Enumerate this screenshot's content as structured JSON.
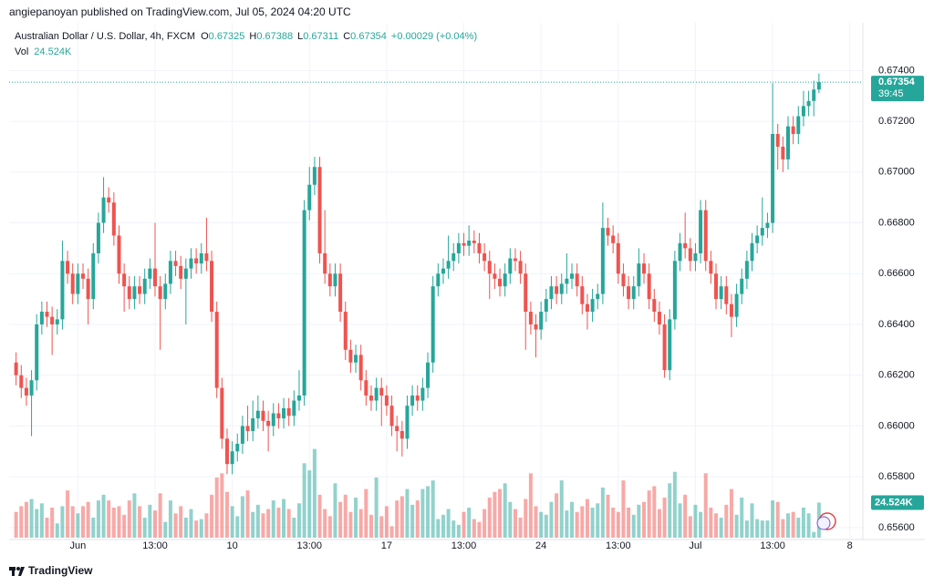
{
  "chart_data": {
    "type": "candlestick",
    "author_line": "angiepanoyan published on TradingView.com, Jul 05, 2024 04:20 UTC",
    "legend": {
      "symbol": "Australian Dollar / U.S. Dollar, 4h, FXCM",
      "o_label": "O",
      "open": 0.67325,
      "h_label": "H",
      "high": 0.67388,
      "l_label": "L",
      "low": 0.67311,
      "c_label": "C",
      "close": 0.67354,
      "change": "+0.00029 (+0.04%)",
      "vol_label": "Vol",
      "vol_value": "24.524K"
    },
    "countdown": "39:45",
    "footer": "TradingView",
    "up_color": "#26a69a",
    "down_color": "#ef5350",
    "grid": true,
    "xlim": [
      -1,
      164
    ],
    "xticks": [
      {
        "value": 12,
        "label": "Jun"
      },
      {
        "value": 27,
        "label": "13:00"
      },
      {
        "value": 42,
        "label": "10"
      },
      {
        "value": 57,
        "label": "13:00"
      },
      {
        "value": 72,
        "label": "17"
      },
      {
        "value": 87,
        "label": "13:00"
      },
      {
        "value": 102,
        "label": "24"
      },
      {
        "value": 117,
        "label": "13:00"
      },
      {
        "value": 132,
        "label": "Jul"
      },
      {
        "value": 147,
        "label": "13:00"
      },
      {
        "value": 162,
        "label": "8"
      }
    ],
    "ylim": [
      0.6556,
      0.6757
    ],
    "yticks": [
      {
        "value": 0.656,
        "label": "0.65600"
      },
      {
        "value": 0.658,
        "label": "0.65800"
      },
      {
        "value": 0.66,
        "label": "0.66000"
      },
      {
        "value": 0.662,
        "label": "0.66200"
      },
      {
        "value": 0.664,
        "label": "0.66400"
      },
      {
        "value": 0.666,
        "label": "0.66600"
      },
      {
        "value": 0.668,
        "label": "0.66800"
      },
      {
        "value": 0.67,
        "label": "0.67000"
      },
      {
        "value": 0.672,
        "label": "0.67200"
      },
      {
        "value": 0.674,
        "label": "0.67400"
      }
    ],
    "vlim": [
      0,
      70
    ],
    "ohlc": [
      [
        0.6625,
        0.6629,
        0.6616,
        0.662
      ],
      [
        0.662,
        0.6624,
        0.6611,
        0.6615
      ],
      [
        0.6615,
        0.6619,
        0.6608,
        0.6612
      ],
      [
        0.6612,
        0.6622,
        0.6596,
        0.6618
      ],
      [
        0.6618,
        0.6644,
        0.6614,
        0.664
      ],
      [
        0.664,
        0.6649,
        0.6636,
        0.6645
      ],
      [
        0.6645,
        0.6649,
        0.6639,
        0.6643
      ],
      [
        0.6643,
        0.6647,
        0.6628,
        0.664
      ],
      [
        0.664,
        0.6646,
        0.6636,
        0.6642
      ],
      [
        0.6642,
        0.6673,
        0.6638,
        0.6665
      ],
      [
        0.6665,
        0.6669,
        0.6656,
        0.666
      ],
      [
        0.666,
        0.6664,
        0.6648,
        0.6652
      ],
      [
        0.6652,
        0.6664,
        0.6648,
        0.666
      ],
      [
        0.666,
        0.6664,
        0.6654,
        0.6658
      ],
      [
        0.6658,
        0.6662,
        0.664,
        0.665
      ],
      [
        0.665,
        0.6672,
        0.6646,
        0.6668
      ],
      [
        0.6668,
        0.6684,
        0.6664,
        0.668
      ],
      [
        0.668,
        0.6698,
        0.6676,
        0.669
      ],
      [
        0.669,
        0.6694,
        0.6684,
        0.6688
      ],
      [
        0.6688,
        0.6692,
        0.6671,
        0.6675
      ],
      [
        0.6675,
        0.6679,
        0.6656,
        0.666
      ],
      [
        0.666,
        0.6664,
        0.6645,
        0.6655
      ],
      [
        0.6655,
        0.6659,
        0.6646,
        0.665
      ],
      [
        0.665,
        0.6659,
        0.6646,
        0.6655
      ],
      [
        0.6655,
        0.6659,
        0.6648,
        0.6652
      ],
      [
        0.6652,
        0.6662,
        0.6648,
        0.6658
      ],
      [
        0.6658,
        0.6666,
        0.6654,
        0.6662
      ],
      [
        0.6662,
        0.668,
        0.6651,
        0.6655
      ],
      [
        0.6655,
        0.6659,
        0.663,
        0.665
      ],
      [
        0.665,
        0.666,
        0.6646,
        0.6656
      ],
      [
        0.6656,
        0.6669,
        0.6652,
        0.6665
      ],
      [
        0.6665,
        0.6669,
        0.6659,
        0.6663
      ],
      [
        0.6663,
        0.6667,
        0.6654,
        0.6658
      ],
      [
        0.6658,
        0.6666,
        0.664,
        0.6662
      ],
      [
        0.6662,
        0.667,
        0.6658,
        0.6666
      ],
      [
        0.6666,
        0.667,
        0.666,
        0.6664
      ],
      [
        0.6664,
        0.6672,
        0.666,
        0.6668
      ],
      [
        0.6668,
        0.6682,
        0.6661,
        0.6665
      ],
      [
        0.6665,
        0.6669,
        0.6641,
        0.6645
      ],
      [
        0.6645,
        0.6649,
        0.6611,
        0.6615
      ],
      [
        0.6615,
        0.6619,
        0.6591,
        0.6595
      ],
      [
        0.6595,
        0.6599,
        0.6581,
        0.6585
      ],
      [
        0.6585,
        0.6594,
        0.6581,
        0.659
      ],
      [
        0.659,
        0.6597,
        0.6586,
        0.6593
      ],
      [
        0.6593,
        0.6604,
        0.6589,
        0.66
      ],
      [
        0.66,
        0.6608,
        0.6594,
        0.6598
      ],
      [
        0.6598,
        0.661,
        0.6594,
        0.6603
      ],
      [
        0.6603,
        0.6612,
        0.6599,
        0.6606
      ],
      [
        0.6606,
        0.661,
        0.6598,
        0.6602
      ],
      [
        0.6602,
        0.6606,
        0.659,
        0.66
      ],
      [
        0.66,
        0.6609,
        0.6596,
        0.6605
      ],
      [
        0.6605,
        0.6609,
        0.6599,
        0.6603
      ],
      [
        0.6603,
        0.6611,
        0.6599,
        0.6607
      ],
      [
        0.6607,
        0.6611,
        0.66,
        0.6604
      ],
      [
        0.6604,
        0.6614,
        0.66,
        0.661
      ],
      [
        0.661,
        0.6622,
        0.6606,
        0.6612
      ],
      [
        0.6612,
        0.6689,
        0.6608,
        0.6685
      ],
      [
        0.6685,
        0.6702,
        0.6681,
        0.6695
      ],
      [
        0.6695,
        0.6706,
        0.6691,
        0.6702
      ],
      [
        0.6702,
        0.6706,
        0.6664,
        0.6668
      ],
      [
        0.6668,
        0.6685,
        0.6656,
        0.666
      ],
      [
        0.666,
        0.6664,
        0.6651,
        0.6655
      ],
      [
        0.6655,
        0.6664,
        0.6651,
        0.666
      ],
      [
        0.666,
        0.6664,
        0.6641,
        0.6645
      ],
      [
        0.6645,
        0.6649,
        0.6626,
        0.663
      ],
      [
        0.663,
        0.6634,
        0.6621,
        0.6625
      ],
      [
        0.6625,
        0.6632,
        0.6621,
        0.6628
      ],
      [
        0.6628,
        0.6632,
        0.6614,
        0.6618
      ],
      [
        0.6618,
        0.6622,
        0.6608,
        0.6612
      ],
      [
        0.6612,
        0.6616,
        0.6606,
        0.661
      ],
      [
        0.661,
        0.6619,
        0.6606,
        0.6615
      ],
      [
        0.6615,
        0.6619,
        0.66,
        0.6612
      ],
      [
        0.6612,
        0.6616,
        0.6604,
        0.6608
      ],
      [
        0.6608,
        0.6612,
        0.6596,
        0.66
      ],
      [
        0.66,
        0.6604,
        0.659,
        0.6598
      ],
      [
        0.6598,
        0.6602,
        0.6588,
        0.6595
      ],
      [
        0.6595,
        0.6612,
        0.6591,
        0.6608
      ],
      [
        0.6608,
        0.6616,
        0.6604,
        0.6612
      ],
      [
        0.6612,
        0.6616,
        0.6606,
        0.661
      ],
      [
        0.661,
        0.6619,
        0.6606,
        0.6615
      ],
      [
        0.6615,
        0.6629,
        0.6611,
        0.6625
      ],
      [
        0.6625,
        0.6659,
        0.6621,
        0.6655
      ],
      [
        0.6655,
        0.6664,
        0.6651,
        0.666
      ],
      [
        0.666,
        0.6666,
        0.6656,
        0.6662
      ],
      [
        0.6662,
        0.6675,
        0.6658,
        0.6665
      ],
      [
        0.6665,
        0.6672,
        0.6661,
        0.6668
      ],
      [
        0.6668,
        0.6676,
        0.6664,
        0.6672
      ],
      [
        0.6672,
        0.6676,
        0.6667,
        0.6671
      ],
      [
        0.6671,
        0.6679,
        0.6667,
        0.6673
      ],
      [
        0.6673,
        0.6677,
        0.6668,
        0.6672
      ],
      [
        0.6672,
        0.6676,
        0.6664,
        0.6668
      ],
      [
        0.6668,
        0.6672,
        0.6661,
        0.6665
      ],
      [
        0.6665,
        0.6669,
        0.665,
        0.666
      ],
      [
        0.666,
        0.6664,
        0.6654,
        0.6658
      ],
      [
        0.6658,
        0.6662,
        0.6651,
        0.6655
      ],
      [
        0.6655,
        0.6664,
        0.6651,
        0.666
      ],
      [
        0.666,
        0.667,
        0.6656,
        0.6666
      ],
      [
        0.6666,
        0.667,
        0.6661,
        0.6665
      ],
      [
        0.6665,
        0.6669,
        0.6656,
        0.666
      ],
      [
        0.666,
        0.6664,
        0.663,
        0.6645
      ],
      [
        0.6645,
        0.6649,
        0.6636,
        0.664
      ],
      [
        0.664,
        0.6644,
        0.6627,
        0.6638
      ],
      [
        0.6638,
        0.6649,
        0.6634,
        0.6645
      ],
      [
        0.6645,
        0.6654,
        0.6641,
        0.665
      ],
      [
        0.665,
        0.6659,
        0.6646,
        0.6655
      ],
      [
        0.6655,
        0.6659,
        0.6648,
        0.6652
      ],
      [
        0.6652,
        0.666,
        0.6648,
        0.6656
      ],
      [
        0.6656,
        0.6668,
        0.6652,
        0.6658
      ],
      [
        0.6658,
        0.6664,
        0.6654,
        0.666
      ],
      [
        0.666,
        0.6664,
        0.6651,
        0.6655
      ],
      [
        0.6655,
        0.6659,
        0.6644,
        0.6648
      ],
      [
        0.6648,
        0.6652,
        0.6638,
        0.6645
      ],
      [
        0.6645,
        0.6654,
        0.6641,
        0.665
      ],
      [
        0.665,
        0.6656,
        0.6646,
        0.6652
      ],
      [
        0.6652,
        0.6688,
        0.6648,
        0.6678
      ],
      [
        0.6678,
        0.6682,
        0.6671,
        0.6675
      ],
      [
        0.6675,
        0.6679,
        0.6668,
        0.6672
      ],
      [
        0.6672,
        0.6676,
        0.6656,
        0.666
      ],
      [
        0.666,
        0.6664,
        0.6651,
        0.6655
      ],
      [
        0.6655,
        0.6659,
        0.6646,
        0.665
      ],
      [
        0.665,
        0.6659,
        0.6646,
        0.6655
      ],
      [
        0.6655,
        0.667,
        0.6651,
        0.6664
      ],
      [
        0.6664,
        0.6668,
        0.6656,
        0.666
      ],
      [
        0.666,
        0.6664,
        0.6646,
        0.665
      ],
      [
        0.665,
        0.6654,
        0.6641,
        0.6645
      ],
      [
        0.6645,
        0.6649,
        0.6636,
        0.664
      ],
      [
        0.664,
        0.6644,
        0.6619,
        0.6622
      ],
      [
        0.6622,
        0.6646,
        0.6618,
        0.6642
      ],
      [
        0.6642,
        0.6669,
        0.6638,
        0.6665
      ],
      [
        0.6665,
        0.6676,
        0.6661,
        0.6672
      ],
      [
        0.6672,
        0.6684,
        0.6666,
        0.667
      ],
      [
        0.667,
        0.6674,
        0.6661,
        0.6665
      ],
      [
        0.6665,
        0.6672,
        0.6661,
        0.6668
      ],
      [
        0.6668,
        0.6689,
        0.6664,
        0.6685
      ],
      [
        0.6685,
        0.6689,
        0.6661,
        0.6665
      ],
      [
        0.6665,
        0.6669,
        0.6656,
        0.666
      ],
      [
        0.666,
        0.6664,
        0.6646,
        0.665
      ],
      [
        0.665,
        0.6659,
        0.6646,
        0.6655
      ],
      [
        0.6655,
        0.6659,
        0.6644,
        0.6648
      ],
      [
        0.6648,
        0.6652,
        0.6635,
        0.6643
      ],
      [
        0.6643,
        0.6656,
        0.6639,
        0.6652
      ],
      [
        0.6652,
        0.6662,
        0.6648,
        0.6658
      ],
      [
        0.6658,
        0.6669,
        0.6654,
        0.6665
      ],
      [
        0.6665,
        0.6676,
        0.6661,
        0.6672
      ],
      [
        0.6672,
        0.6679,
        0.6668,
        0.6675
      ],
      [
        0.6675,
        0.669,
        0.6671,
        0.6678
      ],
      [
        0.6678,
        0.6684,
        0.6674,
        0.668
      ],
      [
        0.668,
        0.6735,
        0.6676,
        0.6715
      ],
      [
        0.6715,
        0.6719,
        0.6701,
        0.671
      ],
      [
        0.671,
        0.6714,
        0.67,
        0.6705
      ],
      [
        0.6705,
        0.6722,
        0.6701,
        0.6718
      ],
      [
        0.6718,
        0.6722,
        0.6711,
        0.6715
      ],
      [
        0.6715,
        0.6726,
        0.6711,
        0.6722
      ],
      [
        0.6722,
        0.6732,
        0.6718,
        0.6726
      ],
      [
        0.6726,
        0.6732,
        0.6722,
        0.6728
      ],
      [
        0.6728,
        0.6736,
        0.6722,
        0.67325
      ],
      [
        0.67325,
        0.67388,
        0.67311,
        0.67354
      ]
    ],
    "volume": [
      18,
      22,
      25,
      27,
      20,
      24,
      14,
      21,
      10,
      22,
      33,
      22,
      17,
      22,
      25,
      14,
      26,
      30,
      26,
      21,
      22,
      16,
      26,
      31,
      22,
      14,
      23,
      19,
      31,
      11,
      26,
      17,
      22,
      14,
      20,
      12,
      13,
      17,
      30,
      42,
      45,
      32,
      22,
      15,
      29,
      33,
      18,
      23,
      17,
      20,
      26,
      21,
      27,
      20,
      14,
      24,
      52,
      47,
      62,
      30,
      20,
      15,
      38,
      25,
      30,
      18,
      28,
      20,
      34,
      16,
      42,
      15,
      22,
      8,
      26,
      29,
      34,
      23,
      26,
      34,
      36,
      40,
      13,
      16,
      20,
      12,
      9,
      18,
      21,
      13,
      11,
      20,
      28,
      32,
      34,
      38,
      25,
      20,
      14,
      27,
      45,
      22,
      18,
      16,
      25,
      31,
      40,
      19,
      25,
      18,
      22,
      27,
      21,
      24,
      35,
      30,
      21,
      18,
      40,
      21,
      16,
      23,
      25,
      33,
      36,
      20,
      28,
      38,
      46,
      24,
      30,
      15,
      23,
      18,
      45,
      21,
      17,
      14,
      23,
      34,
      16,
      28,
      12,
      24,
      13,
      12,
      12,
      26,
      25,
      13,
      17,
      18,
      14,
      21,
      17,
      4,
      24.524
    ]
  }
}
